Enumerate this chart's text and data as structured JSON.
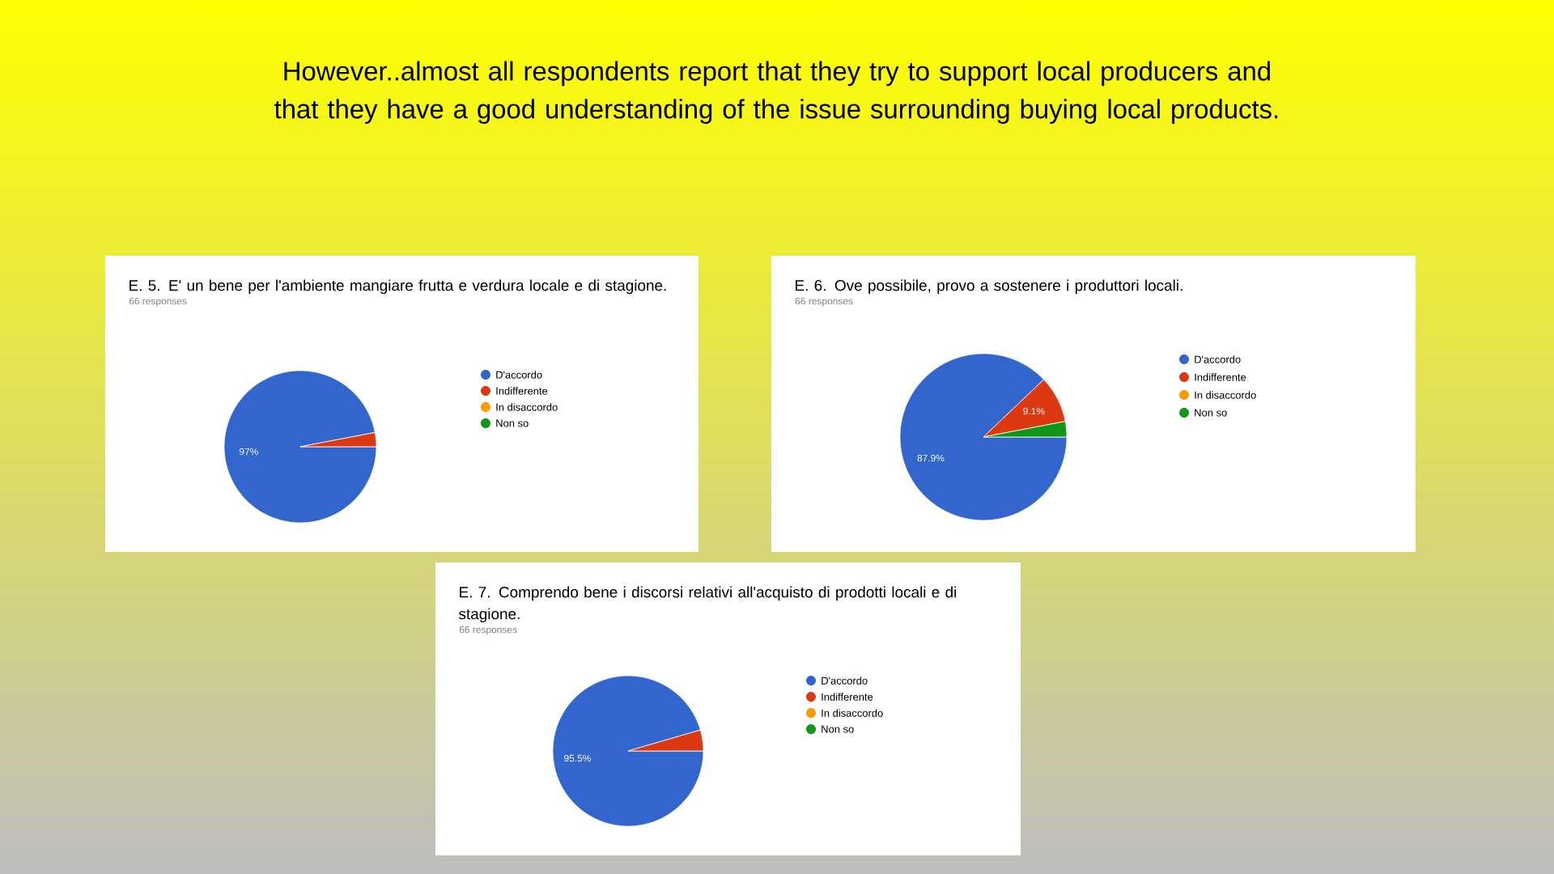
{
  "chart_data": [
    {
      "type": "other",
      "title": "However..almost all respondents report that they try to support local producers and that they have a good understanding of the issue surrounding buying local products."
    },
    {
      "type": "pie",
      "title": "E. 5. E' un bene per l'ambiente mangiare frutta e verdura locale e di stagione.",
      "subtitle": "66 responses",
      "categories": [
        "D'accordo",
        "Indifferente",
        "In disaccordo",
        "Non so"
      ],
      "values": [
        97,
        3,
        0,
        0
      ],
      "value_labels": [
        "97%",
        null,
        null,
        null
      ],
      "colors": [
        "#3366cc",
        "#dc3912",
        "#ff9900",
        "#109618"
      ],
      "legend": "right"
    },
    {
      "type": "pie",
      "title": "E. 6. Ove possibile, provo a sostenere i produttori locali.",
      "subtitle": "66 responses",
      "categories": [
        "D'accordo",
        "Indifferente",
        "In disaccordo",
        "Non so"
      ],
      "values": [
        87.9,
        9.1,
        0,
        3
      ],
      "value_labels": [
        "87.9%",
        "9.1%",
        null,
        null
      ],
      "colors": [
        "#3366cc",
        "#dc3912",
        "#ff9900",
        "#109618"
      ],
      "legend": "right"
    },
    {
      "type": "pie",
      "title": "E. 7.  Comprendo bene i discorsi relativi all'acquisto di prodotti locali e di stagione.",
      "subtitle": "66 responses",
      "categories": [
        "D'accordo",
        "Indifferente",
        "In disaccordo",
        "Non so"
      ],
      "values": [
        95.5,
        4.5,
        0,
        0
      ],
      "value_labels": [
        "95.5%",
        null,
        null,
        null
      ],
      "colors": [
        "#3366cc",
        "#dc3912",
        "#ff9900",
        "#109618"
      ],
      "legend": "right"
    }
  ]
}
